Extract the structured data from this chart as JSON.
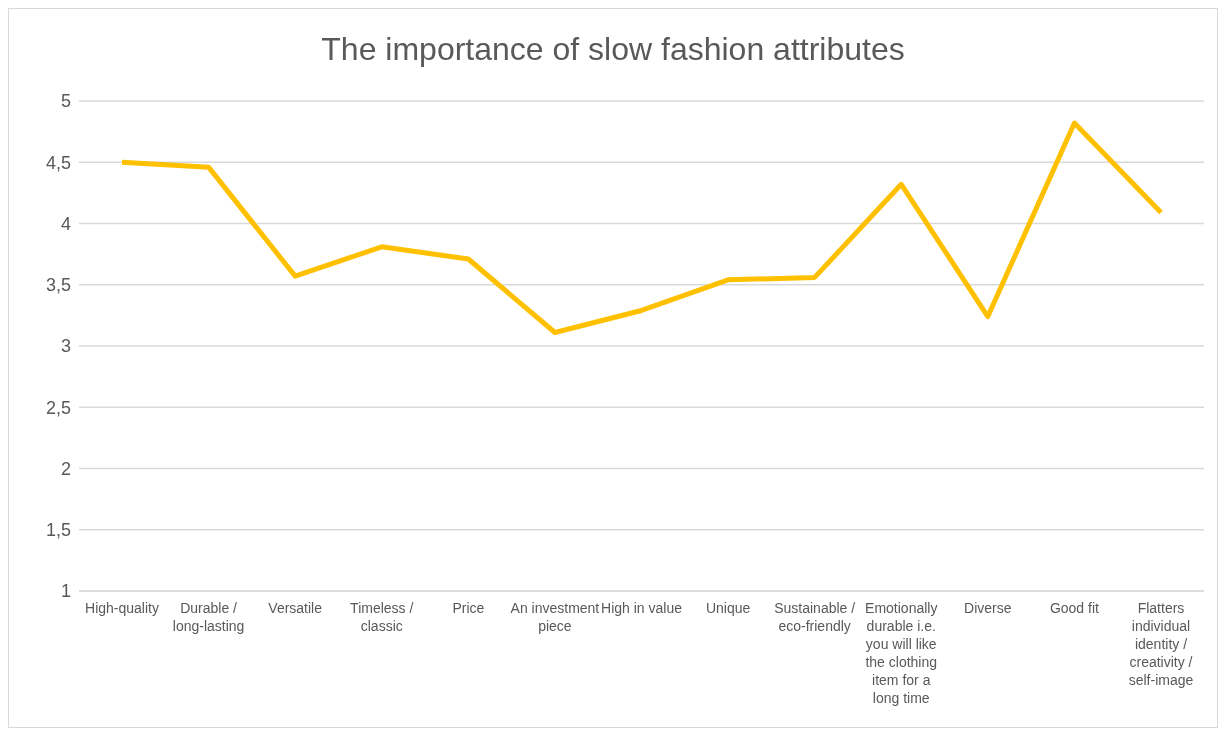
{
  "chart_data": {
    "type": "line",
    "title": "The importance of slow fashion attributes",
    "categories": [
      "High-quality",
      "Durable / long-lasting",
      "Versatile",
      "Timeless / classic",
      "Price",
      "An investment piece",
      "High in value",
      "Unique",
      "Sustainable / eco-friendly",
      "Emotionally durable i.e. you will like the clothing item for a long time",
      "Diverse",
      "Good fit",
      "Flatters individual identity / creativity / self-image"
    ],
    "series": [
      {
        "color": "#ffc000",
        "values": [
          4.5,
          4.46,
          3.57,
          3.81,
          3.71,
          3.11,
          3.29,
          3.54,
          3.56,
          4.32,
          3.24,
          4.82,
          4.09
        ]
      }
    ],
    "ylim": [
      1,
      5
    ],
    "yticks": [
      1,
      {
        "value": 1.5,
        "label": "1,5"
      },
      2,
      {
        "value": 2.5,
        "label": "2,5"
      },
      3,
      {
        "value": 3.5,
        "label": "3,5"
      },
      4,
      {
        "value": 4.5,
        "label": "4,5"
      },
      5
    ],
    "grid": "y",
    "legend": false,
    "marker": "none",
    "line_style": "solid"
  }
}
